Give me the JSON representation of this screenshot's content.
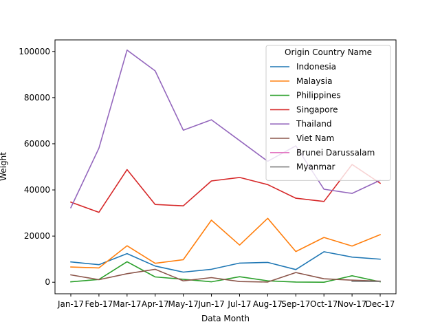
{
  "chart_data": {
    "type": "line",
    "title": "",
    "xlabel": "Data Month",
    "ylabel": "Weight",
    "categories": [
      "Jan-17",
      "Feb-17",
      "Mar-17",
      "Apr-17",
      "May-17",
      "Jun-17",
      "Jul-17",
      "Aug-17",
      "Sep-17",
      "Oct-17",
      "Nov-17",
      "Dec-17"
    ],
    "ylim": [
      -5000,
      105000
    ],
    "yticks": [
      0,
      20000,
      40000,
      60000,
      80000,
      100000
    ],
    "grid": false,
    "legend": {
      "title": "Origin Country Name",
      "placement": "top-right"
    },
    "series": [
      {
        "name": "Indonesia",
        "color": "#1f77b4",
        "values": [
          8800,
          7600,
          12400,
          7000,
          4400,
          5600,
          8300,
          8600,
          5500,
          13200,
          10900,
          10000
        ]
      },
      {
        "name": "Malaysia",
        "color": "#ff7f0e",
        "values": [
          6600,
          6200,
          15800,
          8200,
          9800,
          26900,
          16100,
          27700,
          13300,
          19400,
          15700,
          20600
        ]
      },
      {
        "name": "Philippines",
        "color": "#2ca02c",
        "values": [
          200,
          1200,
          8900,
          2300,
          1300,
          200,
          2400,
          600,
          100,
          0,
          2800,
          200
        ]
      },
      {
        "name": "Singapore",
        "color": "#d62728",
        "values": [
          34700,
          30300,
          48800,
          33700,
          33100,
          43900,
          45400,
          42300,
          36400,
          35000,
          51000,
          42900
        ]
      },
      {
        "name": "Thailand",
        "color": "#9467bd",
        "values": [
          32300,
          58100,
          100600,
          91600,
          65900,
          70400,
          61400,
          52400,
          59100,
          40300,
          38500,
          44200
        ]
      },
      {
        "name": "Viet Nam",
        "color": "#8c564b",
        "values": [
          3200,
          1100,
          3700,
          5600,
          600,
          2000,
          300,
          100,
          4200,
          1500,
          900,
          500
        ]
      },
      {
        "name": "Brunei Darussalam",
        "color": "#e377c2",
        "values": [
          null,
          null,
          null,
          null,
          null,
          null,
          null,
          null,
          null,
          null,
          null,
          null
        ]
      },
      {
        "name": "Myanmar",
        "color": "#7f7f7f",
        "values": [
          null,
          null,
          null,
          null,
          null,
          null,
          null,
          null,
          null,
          null,
          400,
          300
        ]
      }
    ]
  }
}
